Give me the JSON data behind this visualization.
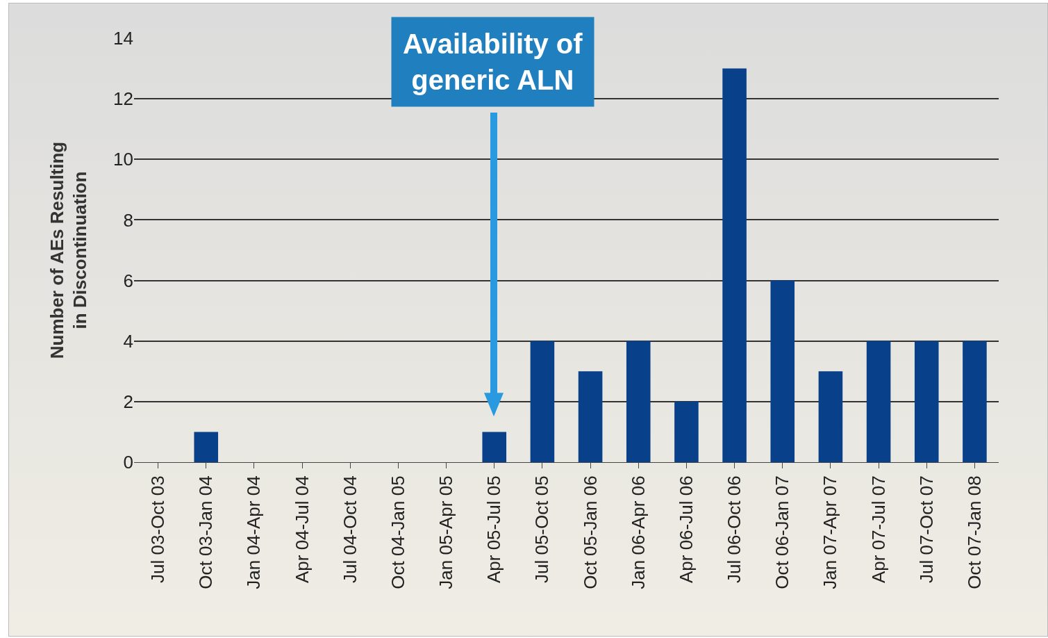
{
  "chart_data": {
    "type": "bar",
    "ylabel": "Number of AEs Resulting in Discontinuation",
    "categories": [
      "Jul 03-Oct 03",
      "Oct 03-Jan 04",
      "Jan 04-Apr 04",
      "Apr 04-Jul 04",
      "Jul 04-Oct 04",
      "Oct 04-Jan 05",
      "Jan 05-Apr 05",
      "Apr 05-Jul 05",
      "Jul 05-Oct 05",
      "Oct 05-Jan 06",
      "Jan 06-Apr 06",
      "Apr 06-Jul 06",
      "Jul 06-Oct 06",
      "Oct 06-Jan 07",
      "Jan 07-Apr 07",
      "Apr 07-Jul 07",
      "Jul 07-Oct 07",
      "Oct 07-Jan 08"
    ],
    "values": [
      0,
      1,
      0,
      0,
      0,
      0,
      0,
      1,
      4,
      3,
      4,
      2,
      13,
      6,
      3,
      4,
      4,
      4
    ],
    "color": "#08418a",
    "ylim": [
      0,
      14
    ],
    "yticks": [
      0,
      2,
      4,
      6,
      8,
      10,
      12,
      14
    ],
    "grid": "y",
    "annotations": [
      "Availability of generic ALN"
    ]
  }
}
